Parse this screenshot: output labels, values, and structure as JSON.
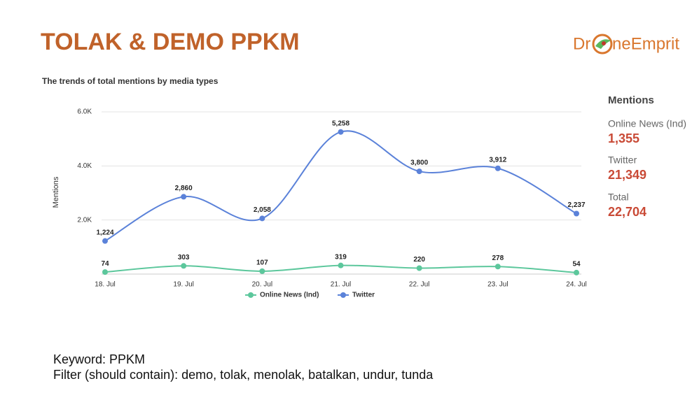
{
  "header": {
    "title": "TOLAK & DEMO PPKM",
    "logo_left": "Dr",
    "logo_right": "neEmprit"
  },
  "chart_data": {
    "type": "line",
    "title": "The trends of total mentions by media types",
    "y_label": "Mentions",
    "categories": [
      "18. Jul",
      "19. Jul",
      "20. Jul",
      "21. Jul",
      "22. Jul",
      "23. Jul",
      "24. Jul"
    ],
    "series": [
      {
        "name": "Online News (Ind)",
        "color": "#5cc79c",
        "values": [
          74,
          303,
          107,
          319,
          220,
          278,
          54
        ],
        "value_labels": [
          "74",
          "303",
          "107",
          "319",
          "220",
          "278",
          "54"
        ]
      },
      {
        "name": "Twitter",
        "color": "#5b82d9",
        "values": [
          1224,
          2860,
          2058,
          5258,
          3800,
          3912,
          2237
        ],
        "value_labels": [
          "1,224",
          "2,860",
          "2,058",
          "5,258",
          "3,800",
          "3,912",
          "2,237"
        ]
      }
    ],
    "ylim": [
      0,
      6000
    ],
    "yticks": [
      {
        "value": 2000,
        "label": "2.0K"
      },
      {
        "value": 4000,
        "label": "4.0K"
      },
      {
        "value": 6000,
        "label": "6.0K"
      }
    ],
    "grid": true,
    "legend": "bottom"
  },
  "summary": {
    "title": "Mentions",
    "items": [
      {
        "label": "Online News (Ind)",
        "value": "1,355"
      },
      {
        "label": "Twitter",
        "value": "21,349"
      },
      {
        "label": "Total",
        "value": "22,704"
      }
    ]
  },
  "notes": [
    "Keyword: PPKM",
    "Filter (should contain): demo, tolak, menolak, batalkan, undur, tunda"
  ]
}
